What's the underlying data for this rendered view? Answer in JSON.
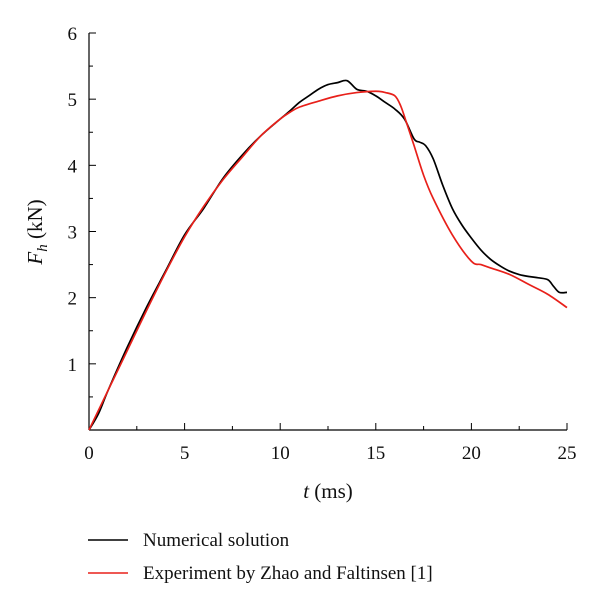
{
  "chart_data": {
    "type": "line",
    "title": "",
    "xlabel_var": "t",
    "xlabel_unit": " (ms)",
    "ylabel_var": "F",
    "ylabel_sub": "h",
    "ylabel_unit": " (kN)",
    "xlim": [
      0,
      25
    ],
    "ylim": [
      0,
      6
    ],
    "xticks": [
      0,
      5,
      10,
      15,
      20,
      25
    ],
    "yticks": [
      1,
      2,
      3,
      4,
      5,
      6
    ],
    "grid": false,
    "legend_position": "bottom",
    "series": [
      {
        "name": "Numerical solution",
        "color": "#000000",
        "x": [
          0,
          0.5,
          1,
          2,
          3,
          4,
          5,
          6,
          7,
          8,
          9,
          10,
          10.5,
          11,
          11.5,
          12,
          12.5,
          13,
          13.5,
          14,
          14.5,
          15,
          15.5,
          16,
          16.5,
          17,
          17.3,
          17.6,
          18,
          18.5,
          19,
          19.5,
          20,
          20.5,
          21,
          21.5,
          22,
          22.5,
          23,
          23.5,
          24,
          24.3,
          24.6,
          25
        ],
        "y": [
          0,
          0.25,
          0.6,
          1.25,
          1.85,
          2.4,
          2.95,
          3.35,
          3.8,
          4.15,
          4.45,
          4.7,
          4.82,
          4.95,
          5.05,
          5.15,
          5.22,
          5.25,
          5.28,
          5.15,
          5.12,
          5.05,
          4.95,
          4.85,
          4.7,
          4.4,
          4.35,
          4.3,
          4.1,
          3.7,
          3.35,
          3.1,
          2.9,
          2.72,
          2.58,
          2.48,
          2.4,
          2.35,
          2.32,
          2.3,
          2.27,
          2.17,
          2.08,
          2.08
        ]
      },
      {
        "name": "Experiment by Zhao and Faltinsen [1]",
        "color": "#e8201a",
        "x": [
          0,
          1,
          2,
          3,
          4,
          5,
          6,
          7,
          8,
          9,
          10,
          10.5,
          11,
          12,
          13,
          14,
          15,
          15.5,
          16,
          16.3,
          16.6,
          17,
          17.5,
          18,
          19,
          20,
          20.5,
          21,
          22,
          23,
          24,
          25
        ],
        "y": [
          0,
          0.6,
          1.2,
          1.8,
          2.38,
          2.92,
          3.38,
          3.78,
          4.12,
          4.45,
          4.7,
          4.8,
          4.88,
          4.97,
          5.05,
          5.1,
          5.12,
          5.1,
          5.05,
          4.9,
          4.65,
          4.3,
          3.85,
          3.5,
          2.95,
          2.55,
          2.5,
          2.45,
          2.35,
          2.2,
          2.05,
          1.85
        ]
      }
    ]
  }
}
